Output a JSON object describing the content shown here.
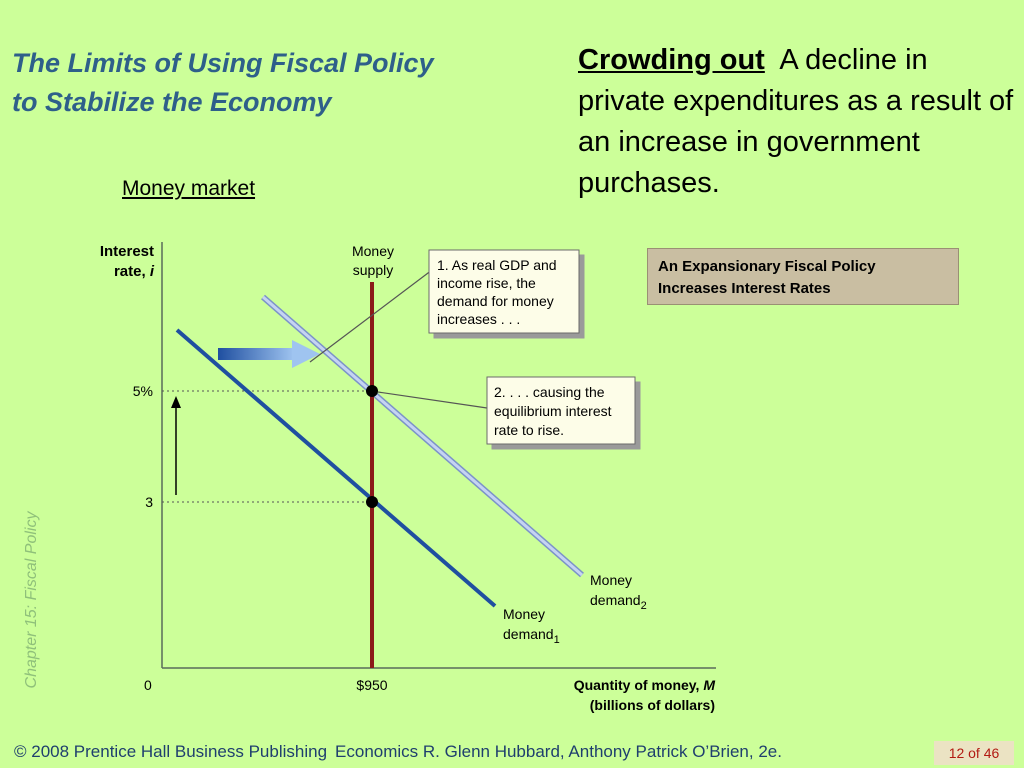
{
  "slide": {
    "title_line1": "The Limits of Using Fiscal Policy",
    "title_line2": "to Stabilize the Economy",
    "definition_term": "Crowding out",
    "definition_text": "A decline in private expenditures as a result of an increase in government purchases.",
    "panel_label": "Money market",
    "sidebar_label": "Chapter 15:  Fiscal Policy",
    "caption_box": "An Expansionary Fiscal Policy Increases Interest Rates",
    "footer_copyright": "© 2008 Prentice Hall Business Publishing",
    "footer_book": "Economics  R. Glenn Hubbard, Anthony Patrick O’Brien, 2e.",
    "page_indicator": "12 of 46"
  },
  "diagram": {
    "y_axis_label_line1": "Interest",
    "y_axis_label_line2": "rate, ",
    "y_axis_symbol": "i",
    "x_axis_label_line1": "Quantity of money, ",
    "x_axis_symbol": "M",
    "x_axis_label_line2": "(billions of dollars)",
    "origin_label": "0",
    "x_tick_label": "$950",
    "y_tick_high": "5%",
    "y_tick_low": "3",
    "supply_label_line1": "Money",
    "supply_label_line2": "supply",
    "demand1_label": "Money",
    "demand1_sub_word": "demand",
    "demand1_sub": "1",
    "demand2_label": "Money",
    "demand2_sub_word": "demand",
    "demand2_sub": "2",
    "callout1_lines": [
      "1. As real GDP and",
      "income rise, the",
      "demand for money",
      "increases . . ."
    ],
    "callout2_lines": [
      "2. . . . causing the",
      "equilibrium interest",
      "rate to rise."
    ],
    "colors": {
      "demand1": "#1f4fa0",
      "demand2": "#9fb4e0",
      "supply": "#8b1a1a",
      "shift_arrow": "#2a5aa8",
      "callout_bg": "#fdfde8"
    }
  }
}
